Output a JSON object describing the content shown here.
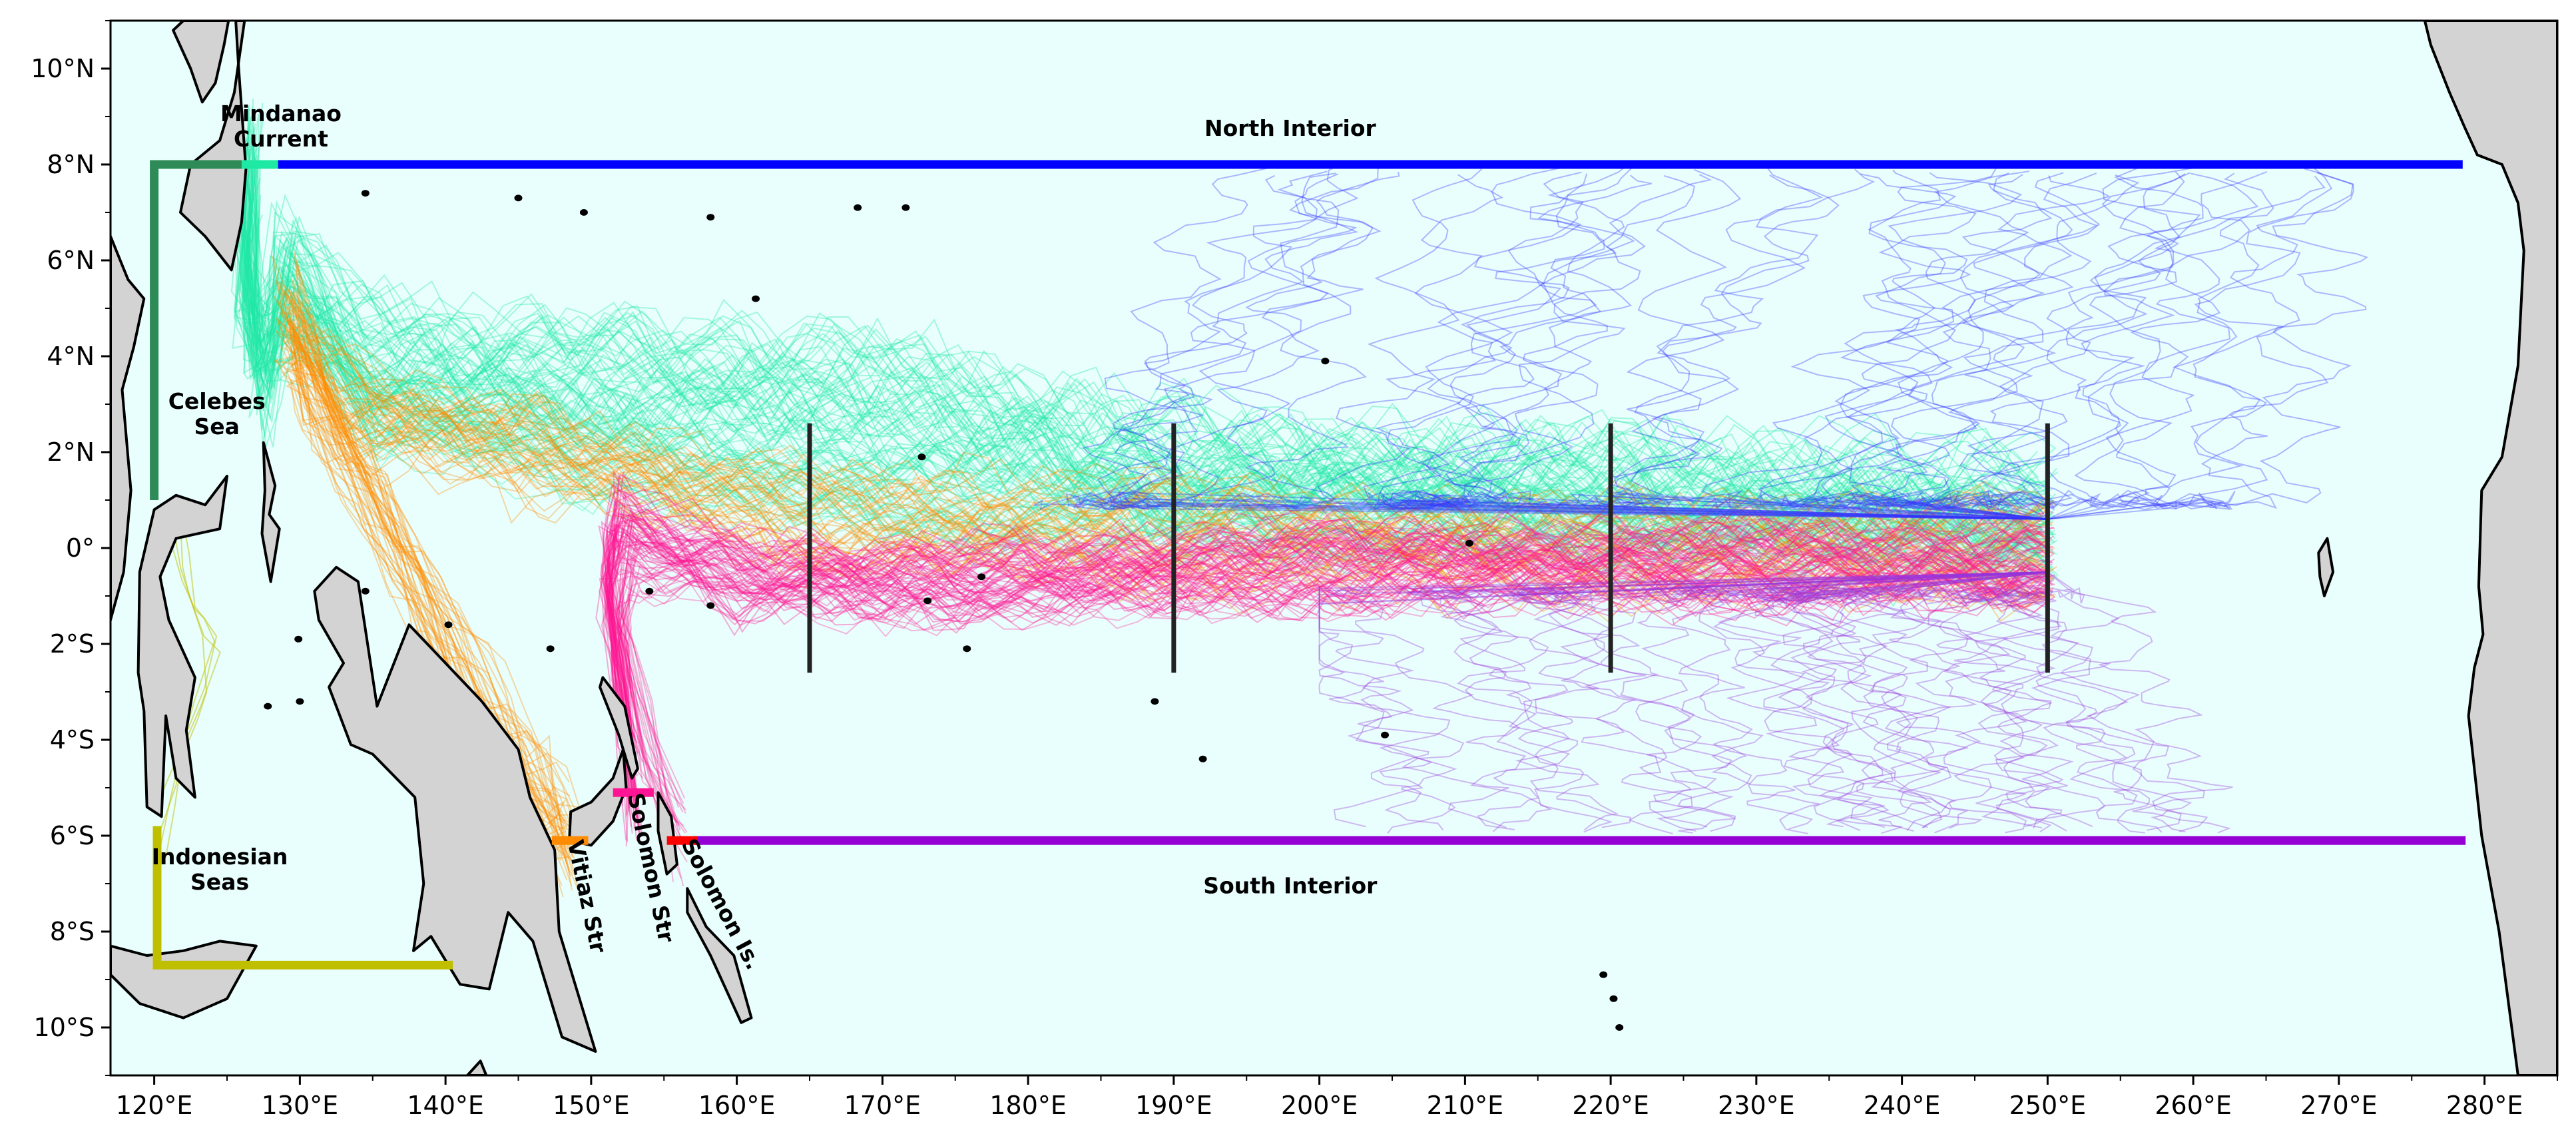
{
  "map": {
    "background_color": "#e9fffd",
    "land_color": "#d3d3d3",
    "coastline_color": "#000000",
    "extent": {
      "lon": [
        117,
        285
      ],
      "lat": [
        -11,
        11
      ]
    },
    "x_ticks": [
      {
        "value": 120,
        "label": "120°E"
      },
      {
        "value": 130,
        "label": "130°E"
      },
      {
        "value": 140,
        "label": "140°E"
      },
      {
        "value": 150,
        "label": "150°E"
      },
      {
        "value": 160,
        "label": "160°E"
      },
      {
        "value": 170,
        "label": "170°E"
      },
      {
        "value": 180,
        "label": "180°E"
      },
      {
        "value": 190,
        "label": "190°E"
      },
      {
        "value": 200,
        "label": "200°E"
      },
      {
        "value": 210,
        "label": "210°E"
      },
      {
        "value": 220,
        "label": "220°E"
      },
      {
        "value": 230,
        "label": "230°E"
      },
      {
        "value": 240,
        "label": "240°E"
      },
      {
        "value": 250,
        "label": "250°E"
      },
      {
        "value": 260,
        "label": "260°E"
      },
      {
        "value": 270,
        "label": "270°E"
      },
      {
        "value": 280,
        "label": "280°E"
      }
    ],
    "y_ticks": [
      {
        "value": 10,
        "label": "10°N"
      },
      {
        "value": 8,
        "label": "8°N"
      },
      {
        "value": 6,
        "label": "6°N"
      },
      {
        "value": 4,
        "label": "4°N"
      },
      {
        "value": 2,
        "label": "2°N"
      },
      {
        "value": 0,
        "label": "0°"
      },
      {
        "value": -2,
        "label": "2°S"
      },
      {
        "value": -4,
        "label": "4°S"
      },
      {
        "value": -6,
        "label": "6°S"
      },
      {
        "value": -8,
        "label": "8°S"
      },
      {
        "value": -10,
        "label": "10°S"
      }
    ],
    "region_labels": [
      {
        "id": "mindanao",
        "lines": [
          "Mindanao",
          "Current"
        ],
        "lon": 128.7,
        "lat": 8.9,
        "rotate": 0
      },
      {
        "id": "north-interior",
        "lines": [
          "North Interior"
        ],
        "lon": 198.0,
        "lat": 8.6,
        "rotate": 0
      },
      {
        "id": "celebes",
        "lines": [
          "Celebes",
          "Sea"
        ],
        "lon": 124.3,
        "lat": 2.9,
        "rotate": 0
      },
      {
        "id": "indonesian",
        "lines": [
          "Indonesian",
          "Seas"
        ],
        "lon": 124.5,
        "lat": -6.6,
        "rotate": 0
      },
      {
        "id": "south-interior",
        "lines": [
          "South Interior"
        ],
        "lon": 198.0,
        "lat": -7.2,
        "rotate": 0
      },
      {
        "id": "vitiaz",
        "lines": [
          "Vitiaz Str"
        ],
        "lon": 149.2,
        "lat": -7.3,
        "rotate": 78
      },
      {
        "id": "solomon-str",
        "lines": [
          "Solomon Str"
        ],
        "lon": 153.6,
        "lat": -6.7,
        "rotate": 78
      },
      {
        "id": "solomon-is",
        "lines": [
          "Solomon Is."
        ],
        "lon": 158.5,
        "lat": -7.5,
        "rotate": 62
      }
    ],
    "boundaries": [
      {
        "id": "north-interior",
        "color": "#0000ff",
        "points": [
          [
            128,
            8
          ],
          [
            278.5,
            8
          ]
        ]
      },
      {
        "id": "south-interior",
        "color": "#9400d3",
        "points": [
          [
            157,
            -6.1
          ],
          [
            278.7,
            -6.1
          ]
        ]
      },
      {
        "id": "mindanao",
        "color": "#1de9a4",
        "points": [
          [
            125.8,
            8
          ],
          [
            128.5,
            8
          ]
        ]
      },
      {
        "id": "celebes",
        "color": "#2e8b57",
        "points": [
          [
            120,
            1.0
          ],
          [
            120,
            8
          ],
          [
            126,
            8
          ]
        ]
      },
      {
        "id": "indonesian",
        "color": "#bfbf00",
        "points": [
          [
            120.2,
            -5.8
          ],
          [
            120.2,
            -8.7
          ],
          [
            140.5,
            -8.7
          ]
        ]
      },
      {
        "id": "vitiaz",
        "color": "#ff8c00",
        "points": [
          [
            147.3,
            -6.1
          ],
          [
            149.8,
            -6.1
          ]
        ]
      },
      {
        "id": "solomon-str",
        "color": "#ff1493",
        "points": [
          [
            151.5,
            -5.1
          ],
          [
            154.3,
            -5.1
          ]
        ]
      },
      {
        "id": "solomon-is",
        "color": "#ff0000",
        "points": [
          [
            155.2,
            -6.1
          ],
          [
            157.3,
            -6.1
          ]
        ]
      }
    ],
    "sections": [
      {
        "lon": 165,
        "lat_range": [
          -2.6,
          2.6
        ]
      },
      {
        "lon": 190,
        "lat_range": [
          -2.6,
          2.6
        ]
      },
      {
        "lon": 220,
        "lat_range": [
          -2.6,
          2.6
        ]
      },
      {
        "lon": 250,
        "lat_range": [
          -2.6,
          2.6
        ]
      }
    ],
    "trajectory_colors": {
      "mindanao": "#1de9a4",
      "vitiaz": "#ff8c00",
      "solomon": "#ff1493",
      "north_interior": "#3333ff",
      "south_interior": "#9933dd",
      "indonesian": "#bfbf00"
    }
  }
}
